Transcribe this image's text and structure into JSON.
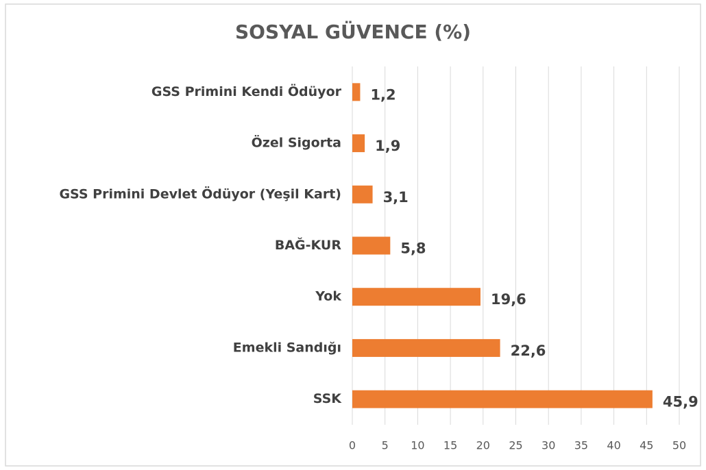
{
  "chart_data": {
    "type": "barh",
    "title": "SOSYAL GÜVENCE (%)",
    "categories": [
      "GSS Primini Kendi Ödüyor",
      "Özel Sigorta",
      "GSS Primini Devlet Ödüyor (Yeşil Kart)",
      "BAĞ-KUR",
      "Yok",
      "Emekli Sandığı",
      "SSK"
    ],
    "values": [
      1.2,
      1.9,
      3.1,
      5.8,
      19.6,
      22.6,
      45.9
    ],
    "value_labels": [
      "1,2",
      "1,9",
      "3,1",
      "5,8",
      "19,6",
      "22,6",
      "45,9"
    ],
    "color": "#ed7d31",
    "xlim": [
      0,
      50
    ],
    "xticks": [
      0,
      5,
      10,
      15,
      20,
      25,
      30,
      35,
      40,
      45,
      50
    ],
    "grid": true
  }
}
